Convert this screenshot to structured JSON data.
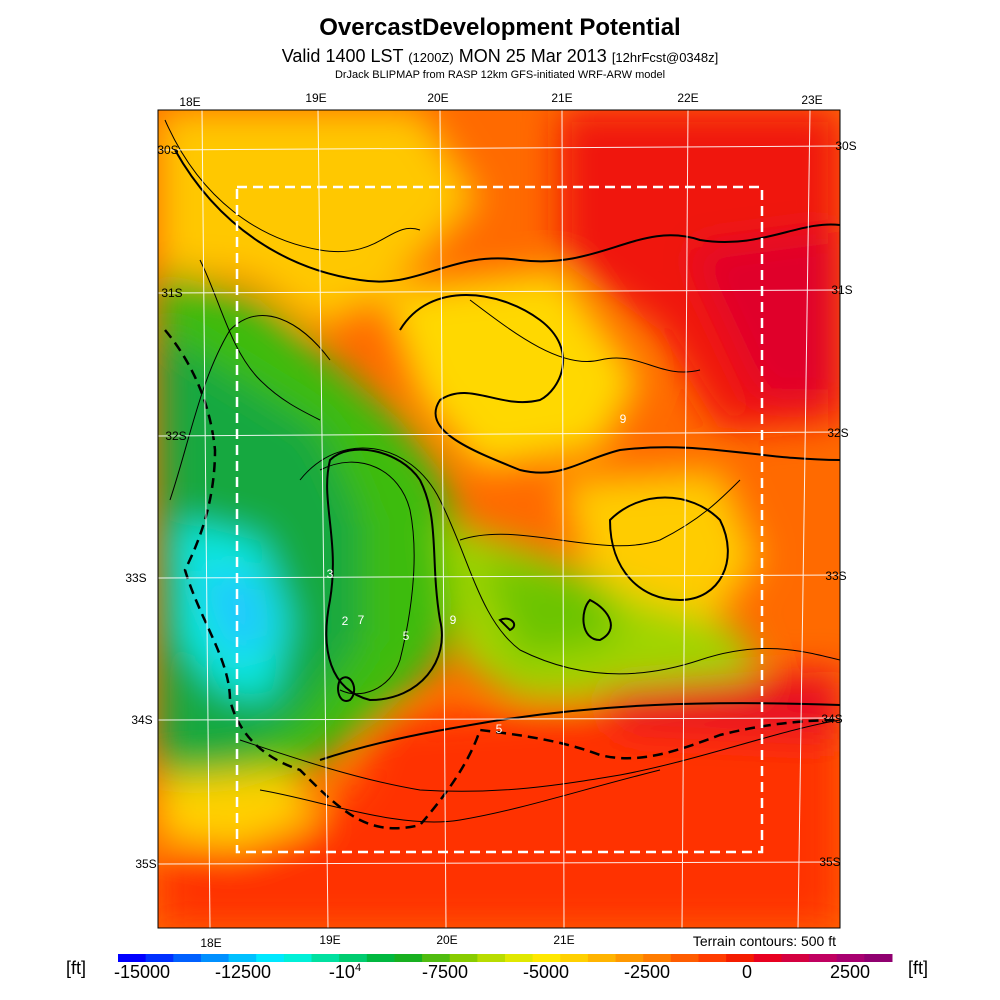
{
  "header": {
    "title": "OvercastDevelopment Potential",
    "valid_prefix": "Valid 1400 LST",
    "valid_zulu": "(1200Z)",
    "valid_date": "MON 25 Mar 2013",
    "forecast": "[12hrFcst@0348z]",
    "model_line": "DrJack BLIPMAP from RASP 12km GFS-initiated WRF-ARW model"
  },
  "map": {
    "top_lon_labels": [
      "18E",
      "19E",
      "20E",
      "21E",
      "22E",
      "23E"
    ],
    "bottom_lon_labels": [
      "18E",
      "19E",
      "20E",
      "21E"
    ],
    "left_lat_labels": [
      "30S",
      "31S",
      "32S",
      "33S",
      "34S",
      "35S"
    ],
    "right_lat_labels": [
      "30S",
      "31S",
      "32S",
      "33S",
      "34S",
      "35S"
    ],
    "contour_labels": [
      "3",
      "2",
      "7",
      "5",
      "9",
      "5",
      "9"
    ],
    "terrain_note": "Terrain contours: 500 ft"
  },
  "legend": {
    "unit_left": "[ft]",
    "unit_right": "[ft]",
    "ticks": [
      "-15000",
      "-12500",
      "-10",
      "-7500",
      "-5000",
      "-2500",
      "0",
      "2500"
    ],
    "tick_exp": "4",
    "colors": [
      "#0000ff",
      "#0030ff",
      "#0060ff",
      "#0090ff",
      "#00c0ff",
      "#00e8ff",
      "#00f0d8",
      "#00e0a0",
      "#00cc70",
      "#00b840",
      "#18b020",
      "#50bc10",
      "#88cc00",
      "#b8dc00",
      "#e0e800",
      "#ffe800",
      "#ffd000",
      "#ffb400",
      "#ff9800",
      "#ff7c00",
      "#ff5c00",
      "#ff3c00",
      "#f41c00",
      "#e80020",
      "#d40040",
      "#c00060",
      "#a80070",
      "#900070"
    ]
  }
}
